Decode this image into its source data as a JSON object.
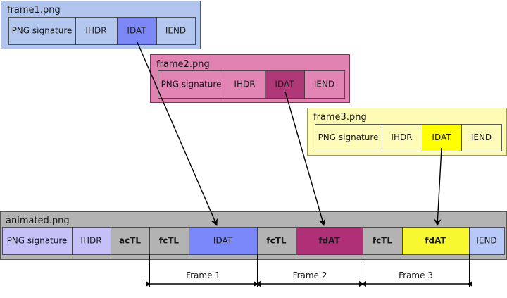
{
  "frames": [
    {
      "title": "frame1.png",
      "bg": "#b0c4ee",
      "border": "#4a5a80",
      "chunks": [
        {
          "label": "PNG signature",
          "color": "#b3c7ef"
        },
        {
          "label": "IHDR",
          "color": "#b3c7ef"
        },
        {
          "label": "IDAT",
          "color": "#7b88f5"
        },
        {
          "label": "IEND",
          "color": "#b3c7ef"
        }
      ]
    },
    {
      "title": "frame2.png",
      "bg": "#e082b2",
      "border": "#803050",
      "chunks": [
        {
          "label": "PNG signature",
          "color": "#e285b5"
        },
        {
          "label": "IHDR",
          "color": "#e285b5"
        },
        {
          "label": "IDAT",
          "color": "#b03878"
        },
        {
          "label": "IEND",
          "color": "#e285b5"
        }
      ]
    },
    {
      "title": "frame3.png",
      "bg": "#fefcb4",
      "border": "#9a9860",
      "chunks": [
        {
          "label": "PNG signature",
          "color": "#fefcb8"
        },
        {
          "label": "IHDR",
          "color": "#fefcb8"
        },
        {
          "label": "IDAT",
          "color": "#ffff00"
        },
        {
          "label": "IEND",
          "color": "#fefcb8"
        }
      ]
    }
  ],
  "animated": {
    "title": "animated.png",
    "bg": "#b3b3b3",
    "border": "#555555",
    "chunks": [
      {
        "label": "PNG signature",
        "color": "#c6c0f8",
        "bold": false
      },
      {
        "label": "IHDR",
        "color": "#c6c0f8",
        "bold": false
      },
      {
        "label": "acTL",
        "color": "#b3b3b3",
        "bold": true
      },
      {
        "label": "fcTL",
        "color": "#b3b3b3",
        "bold": true
      },
      {
        "label": "IDAT",
        "color": "#7b88fb",
        "bold": false
      },
      {
        "label": "fcTL",
        "color": "#b3b3b3",
        "bold": true
      },
      {
        "label": "fdAT",
        "color": "#b03078",
        "bold": true
      },
      {
        "label": "fcTL",
        "color": "#b3b3b3",
        "bold": true
      },
      {
        "label": "fdAT",
        "color": "#f8f830",
        "bold": true
      },
      {
        "label": "IEND",
        "color": "#b8c8f8",
        "bold": false
      }
    ]
  },
  "frame_spans": [
    {
      "label": "Frame 1"
    },
    {
      "label": "Frame 2"
    },
    {
      "label": "Frame 3"
    }
  ]
}
